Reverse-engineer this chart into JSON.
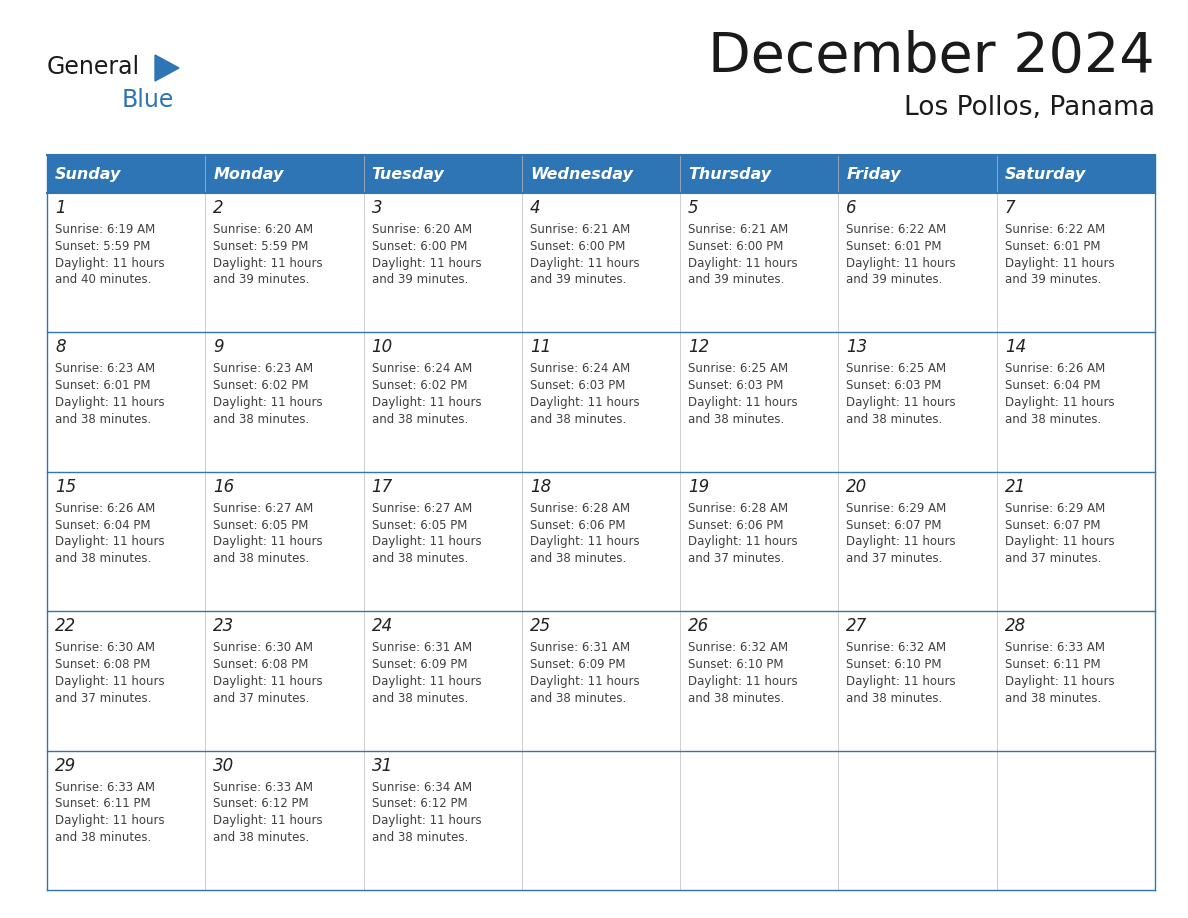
{
  "title": "December 2024",
  "subtitle": "Los Pollos, Panama",
  "header_color": "#2E75B6",
  "header_text_color": "#FFFFFF",
  "border_color": "#2E75B6",
  "row_border_color": "#5B9BD5",
  "days_of_week": [
    "Sunday",
    "Monday",
    "Tuesday",
    "Wednesday",
    "Thursday",
    "Friday",
    "Saturday"
  ],
  "weeks": [
    [
      {
        "day": "1",
        "sunrise": "6:19 AM",
        "sunset": "5:59 PM",
        "daylight_h": "11",
        "daylight_m": "40"
      },
      {
        "day": "2",
        "sunrise": "6:20 AM",
        "sunset": "5:59 PM",
        "daylight_h": "11",
        "daylight_m": "39"
      },
      {
        "day": "3",
        "sunrise": "6:20 AM",
        "sunset": "6:00 PM",
        "daylight_h": "11",
        "daylight_m": "39"
      },
      {
        "day": "4",
        "sunrise": "6:21 AM",
        "sunset": "6:00 PM",
        "daylight_h": "11",
        "daylight_m": "39"
      },
      {
        "day": "5",
        "sunrise": "6:21 AM",
        "sunset": "6:00 PM",
        "daylight_h": "11",
        "daylight_m": "39"
      },
      {
        "day": "6",
        "sunrise": "6:22 AM",
        "sunset": "6:01 PM",
        "daylight_h": "11",
        "daylight_m": "39"
      },
      {
        "day": "7",
        "sunrise": "6:22 AM",
        "sunset": "6:01 PM",
        "daylight_h": "11",
        "daylight_m": "39"
      }
    ],
    [
      {
        "day": "8",
        "sunrise": "6:23 AM",
        "sunset": "6:01 PM",
        "daylight_h": "11",
        "daylight_m": "38"
      },
      {
        "day": "9",
        "sunrise": "6:23 AM",
        "sunset": "6:02 PM",
        "daylight_h": "11",
        "daylight_m": "38"
      },
      {
        "day": "10",
        "sunrise": "6:24 AM",
        "sunset": "6:02 PM",
        "daylight_h": "11",
        "daylight_m": "38"
      },
      {
        "day": "11",
        "sunrise": "6:24 AM",
        "sunset": "6:03 PM",
        "daylight_h": "11",
        "daylight_m": "38"
      },
      {
        "day": "12",
        "sunrise": "6:25 AM",
        "sunset": "6:03 PM",
        "daylight_h": "11",
        "daylight_m": "38"
      },
      {
        "day": "13",
        "sunrise": "6:25 AM",
        "sunset": "6:03 PM",
        "daylight_h": "11",
        "daylight_m": "38"
      },
      {
        "day": "14",
        "sunrise": "6:26 AM",
        "sunset": "6:04 PM",
        "daylight_h": "11",
        "daylight_m": "38"
      }
    ],
    [
      {
        "day": "15",
        "sunrise": "6:26 AM",
        "sunset": "6:04 PM",
        "daylight_h": "11",
        "daylight_m": "38"
      },
      {
        "day": "16",
        "sunrise": "6:27 AM",
        "sunset": "6:05 PM",
        "daylight_h": "11",
        "daylight_m": "38"
      },
      {
        "day": "17",
        "sunrise": "6:27 AM",
        "sunset": "6:05 PM",
        "daylight_h": "11",
        "daylight_m": "38"
      },
      {
        "day": "18",
        "sunrise": "6:28 AM",
        "sunset": "6:06 PM",
        "daylight_h": "11",
        "daylight_m": "38"
      },
      {
        "day": "19",
        "sunrise": "6:28 AM",
        "sunset": "6:06 PM",
        "daylight_h": "11",
        "daylight_m": "37"
      },
      {
        "day": "20",
        "sunrise": "6:29 AM",
        "sunset": "6:07 PM",
        "daylight_h": "11",
        "daylight_m": "37"
      },
      {
        "day": "21",
        "sunrise": "6:29 AM",
        "sunset": "6:07 PM",
        "daylight_h": "11",
        "daylight_m": "37"
      }
    ],
    [
      {
        "day": "22",
        "sunrise": "6:30 AM",
        "sunset": "6:08 PM",
        "daylight_h": "11",
        "daylight_m": "37"
      },
      {
        "day": "23",
        "sunrise": "6:30 AM",
        "sunset": "6:08 PM",
        "daylight_h": "11",
        "daylight_m": "37"
      },
      {
        "day": "24",
        "sunrise": "6:31 AM",
        "sunset": "6:09 PM",
        "daylight_h": "11",
        "daylight_m": "38"
      },
      {
        "day": "25",
        "sunrise": "6:31 AM",
        "sunset": "6:09 PM",
        "daylight_h": "11",
        "daylight_m": "38"
      },
      {
        "day": "26",
        "sunrise": "6:32 AM",
        "sunset": "6:10 PM",
        "daylight_h": "11",
        "daylight_m": "38"
      },
      {
        "day": "27",
        "sunrise": "6:32 AM",
        "sunset": "6:10 PM",
        "daylight_h": "11",
        "daylight_m": "38"
      },
      {
        "day": "28",
        "sunrise": "6:33 AM",
        "sunset": "6:11 PM",
        "daylight_h": "11",
        "daylight_m": "38"
      }
    ],
    [
      {
        "day": "29",
        "sunrise": "6:33 AM",
        "sunset": "6:11 PM",
        "daylight_h": "11",
        "daylight_m": "38"
      },
      {
        "day": "30",
        "sunrise": "6:33 AM",
        "sunset": "6:12 PM",
        "daylight_h": "11",
        "daylight_m": "38"
      },
      {
        "day": "31",
        "sunrise": "6:34 AM",
        "sunset": "6:12 PM",
        "daylight_h": "11",
        "daylight_m": "38"
      },
      null,
      null,
      null,
      null
    ]
  ],
  "logo_general_color": "#1a1a1a",
  "logo_blue_color": "#2E75B6",
  "title_color": "#1a1a1a",
  "subtitle_color": "#1a1a1a",
  "cell_text_color": "#404040",
  "day_num_color": "#222222"
}
